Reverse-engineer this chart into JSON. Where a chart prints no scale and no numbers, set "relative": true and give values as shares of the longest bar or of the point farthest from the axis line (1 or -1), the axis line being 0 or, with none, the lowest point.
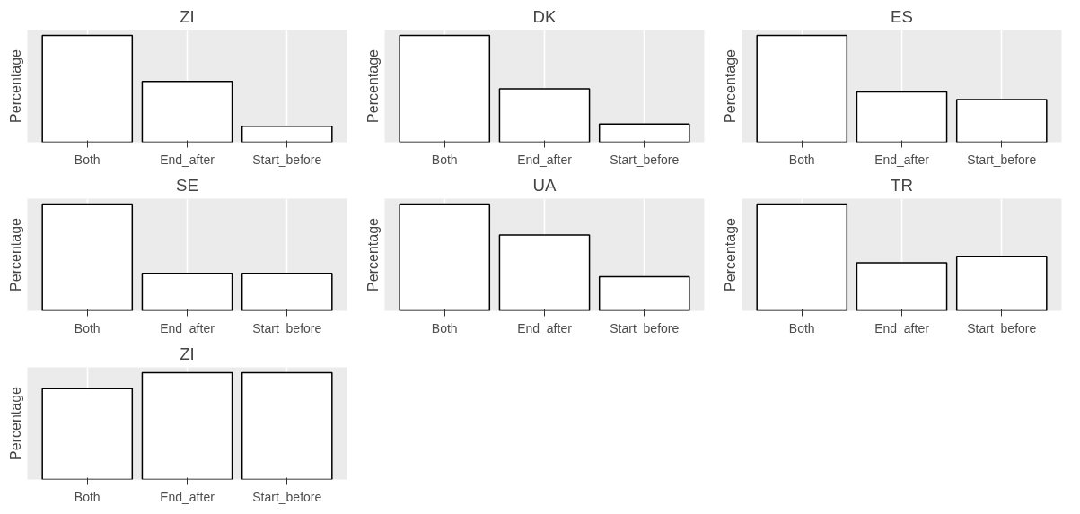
{
  "chart_data": [
    {
      "type": "bar",
      "title": "ZI",
      "ylabel": "Percentage",
      "categories": [
        "Both",
        "End_after",
        "Start_before"
      ],
      "values": [
        1,
        0.57,
        0.15
      ],
      "color": "#ffffff",
      "relative": true,
      "grid": "x",
      "tick_labels": "x"
    },
    {
      "type": "bar",
      "title": "DK",
      "ylabel": "Percentage",
      "categories": [
        "Both",
        "End_after",
        "Start_before"
      ],
      "values": [
        1,
        0.5,
        0.17
      ],
      "color": "#ffffff",
      "relative": true,
      "grid": "x",
      "tick_labels": "x"
    },
    {
      "type": "bar",
      "title": "ES",
      "ylabel": "Percentage",
      "categories": [
        "Both",
        "End_after",
        "Start_before"
      ],
      "values": [
        1,
        0.47,
        0.4
      ],
      "color": "#ffffff",
      "relative": true,
      "grid": "x",
      "tick_labels": "x"
    },
    {
      "type": "bar",
      "title": "SE",
      "ylabel": "Percentage",
      "categories": [
        "Both",
        "End_after",
        "Start_before"
      ],
      "values": [
        1,
        0.35,
        0.35
      ],
      "color": "#ffffff",
      "relative": true,
      "grid": "x",
      "tick_labels": "x"
    },
    {
      "type": "bar",
      "title": "UA",
      "ylabel": "Percentage",
      "categories": [
        "Both",
        "End_after",
        "Start_before"
      ],
      "values": [
        1,
        0.71,
        0.32
      ],
      "color": "#ffffff",
      "relative": true,
      "grid": "x",
      "tick_labels": "x"
    },
    {
      "type": "bar",
      "title": "TR",
      "ylabel": "Percentage",
      "categories": [
        "Both",
        "End_after",
        "Start_before"
      ],
      "values": [
        1,
        0.45,
        0.51
      ],
      "color": "#ffffff",
      "relative": true,
      "grid": "x",
      "tick_labels": "x"
    },
    {
      "type": "bar",
      "title": "ZI",
      "ylabel": "Percentage",
      "categories": [
        "Both",
        "End_after",
        "Start_before"
      ],
      "values": [
        0.85,
        1,
        1
      ],
      "color": "#ffffff",
      "relative": true,
      "grid": "x",
      "tick_labels": "x"
    }
  ]
}
